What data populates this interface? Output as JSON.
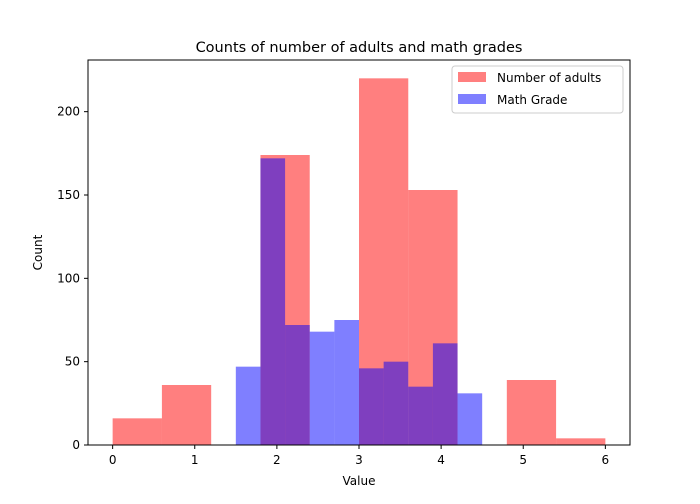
{
  "chart_data": {
    "type": "bar",
    "title": "Counts of number of adults and math grades",
    "xlabel": "Value",
    "ylabel": "Count",
    "xlim": [
      -0.3,
      6.3
    ],
    "ylim": [
      0,
      231
    ],
    "xticks": [
      0,
      1,
      2,
      3,
      4,
      5,
      6
    ],
    "yticks": [
      0,
      50,
      100,
      150,
      200
    ],
    "grid": false,
    "legend_position": "top-right",
    "series": [
      {
        "name": "Number of adults",
        "color": "#ff0000",
        "opacity": 0.5,
        "bins": [
          {
            "x0": 0.0,
            "x1": 0.6,
            "count": 16
          },
          {
            "x0": 0.6,
            "x1": 1.2,
            "count": 36
          },
          {
            "x0": 1.2,
            "x1": 1.8,
            "count": 0
          },
          {
            "x0": 1.8,
            "x1": 2.4,
            "count": 174
          },
          {
            "x0": 2.4,
            "x1": 3.0,
            "count": 0
          },
          {
            "x0": 3.0,
            "x1": 3.6,
            "count": 220
          },
          {
            "x0": 3.6,
            "x1": 4.2,
            "count": 153
          },
          {
            "x0": 4.2,
            "x1": 4.8,
            "count": 0
          },
          {
            "x0": 4.8,
            "x1": 5.4,
            "count": 39
          },
          {
            "x0": 5.4,
            "x1": 6.0,
            "count": 4
          }
        ]
      },
      {
        "name": "Math Grade",
        "color": "#0000ff",
        "opacity": 0.5,
        "bins": [
          {
            "x0": 1.5,
            "x1": 1.8,
            "count": 47
          },
          {
            "x0": 1.8,
            "x1": 2.1,
            "count": 172
          },
          {
            "x0": 2.1,
            "x1": 2.4,
            "count": 72
          },
          {
            "x0": 2.4,
            "x1": 2.7,
            "count": 68
          },
          {
            "x0": 2.7,
            "x1": 3.0,
            "count": 75
          },
          {
            "x0": 3.0,
            "x1": 3.3,
            "count": 46
          },
          {
            "x0": 3.3,
            "x1": 3.6,
            "count": 50
          },
          {
            "x0": 3.6,
            "x1": 3.9,
            "count": 35
          },
          {
            "x0": 3.9,
            "x1": 4.2,
            "count": 61
          },
          {
            "x0": 4.2,
            "x1": 4.5,
            "count": 31
          }
        ]
      }
    ]
  }
}
